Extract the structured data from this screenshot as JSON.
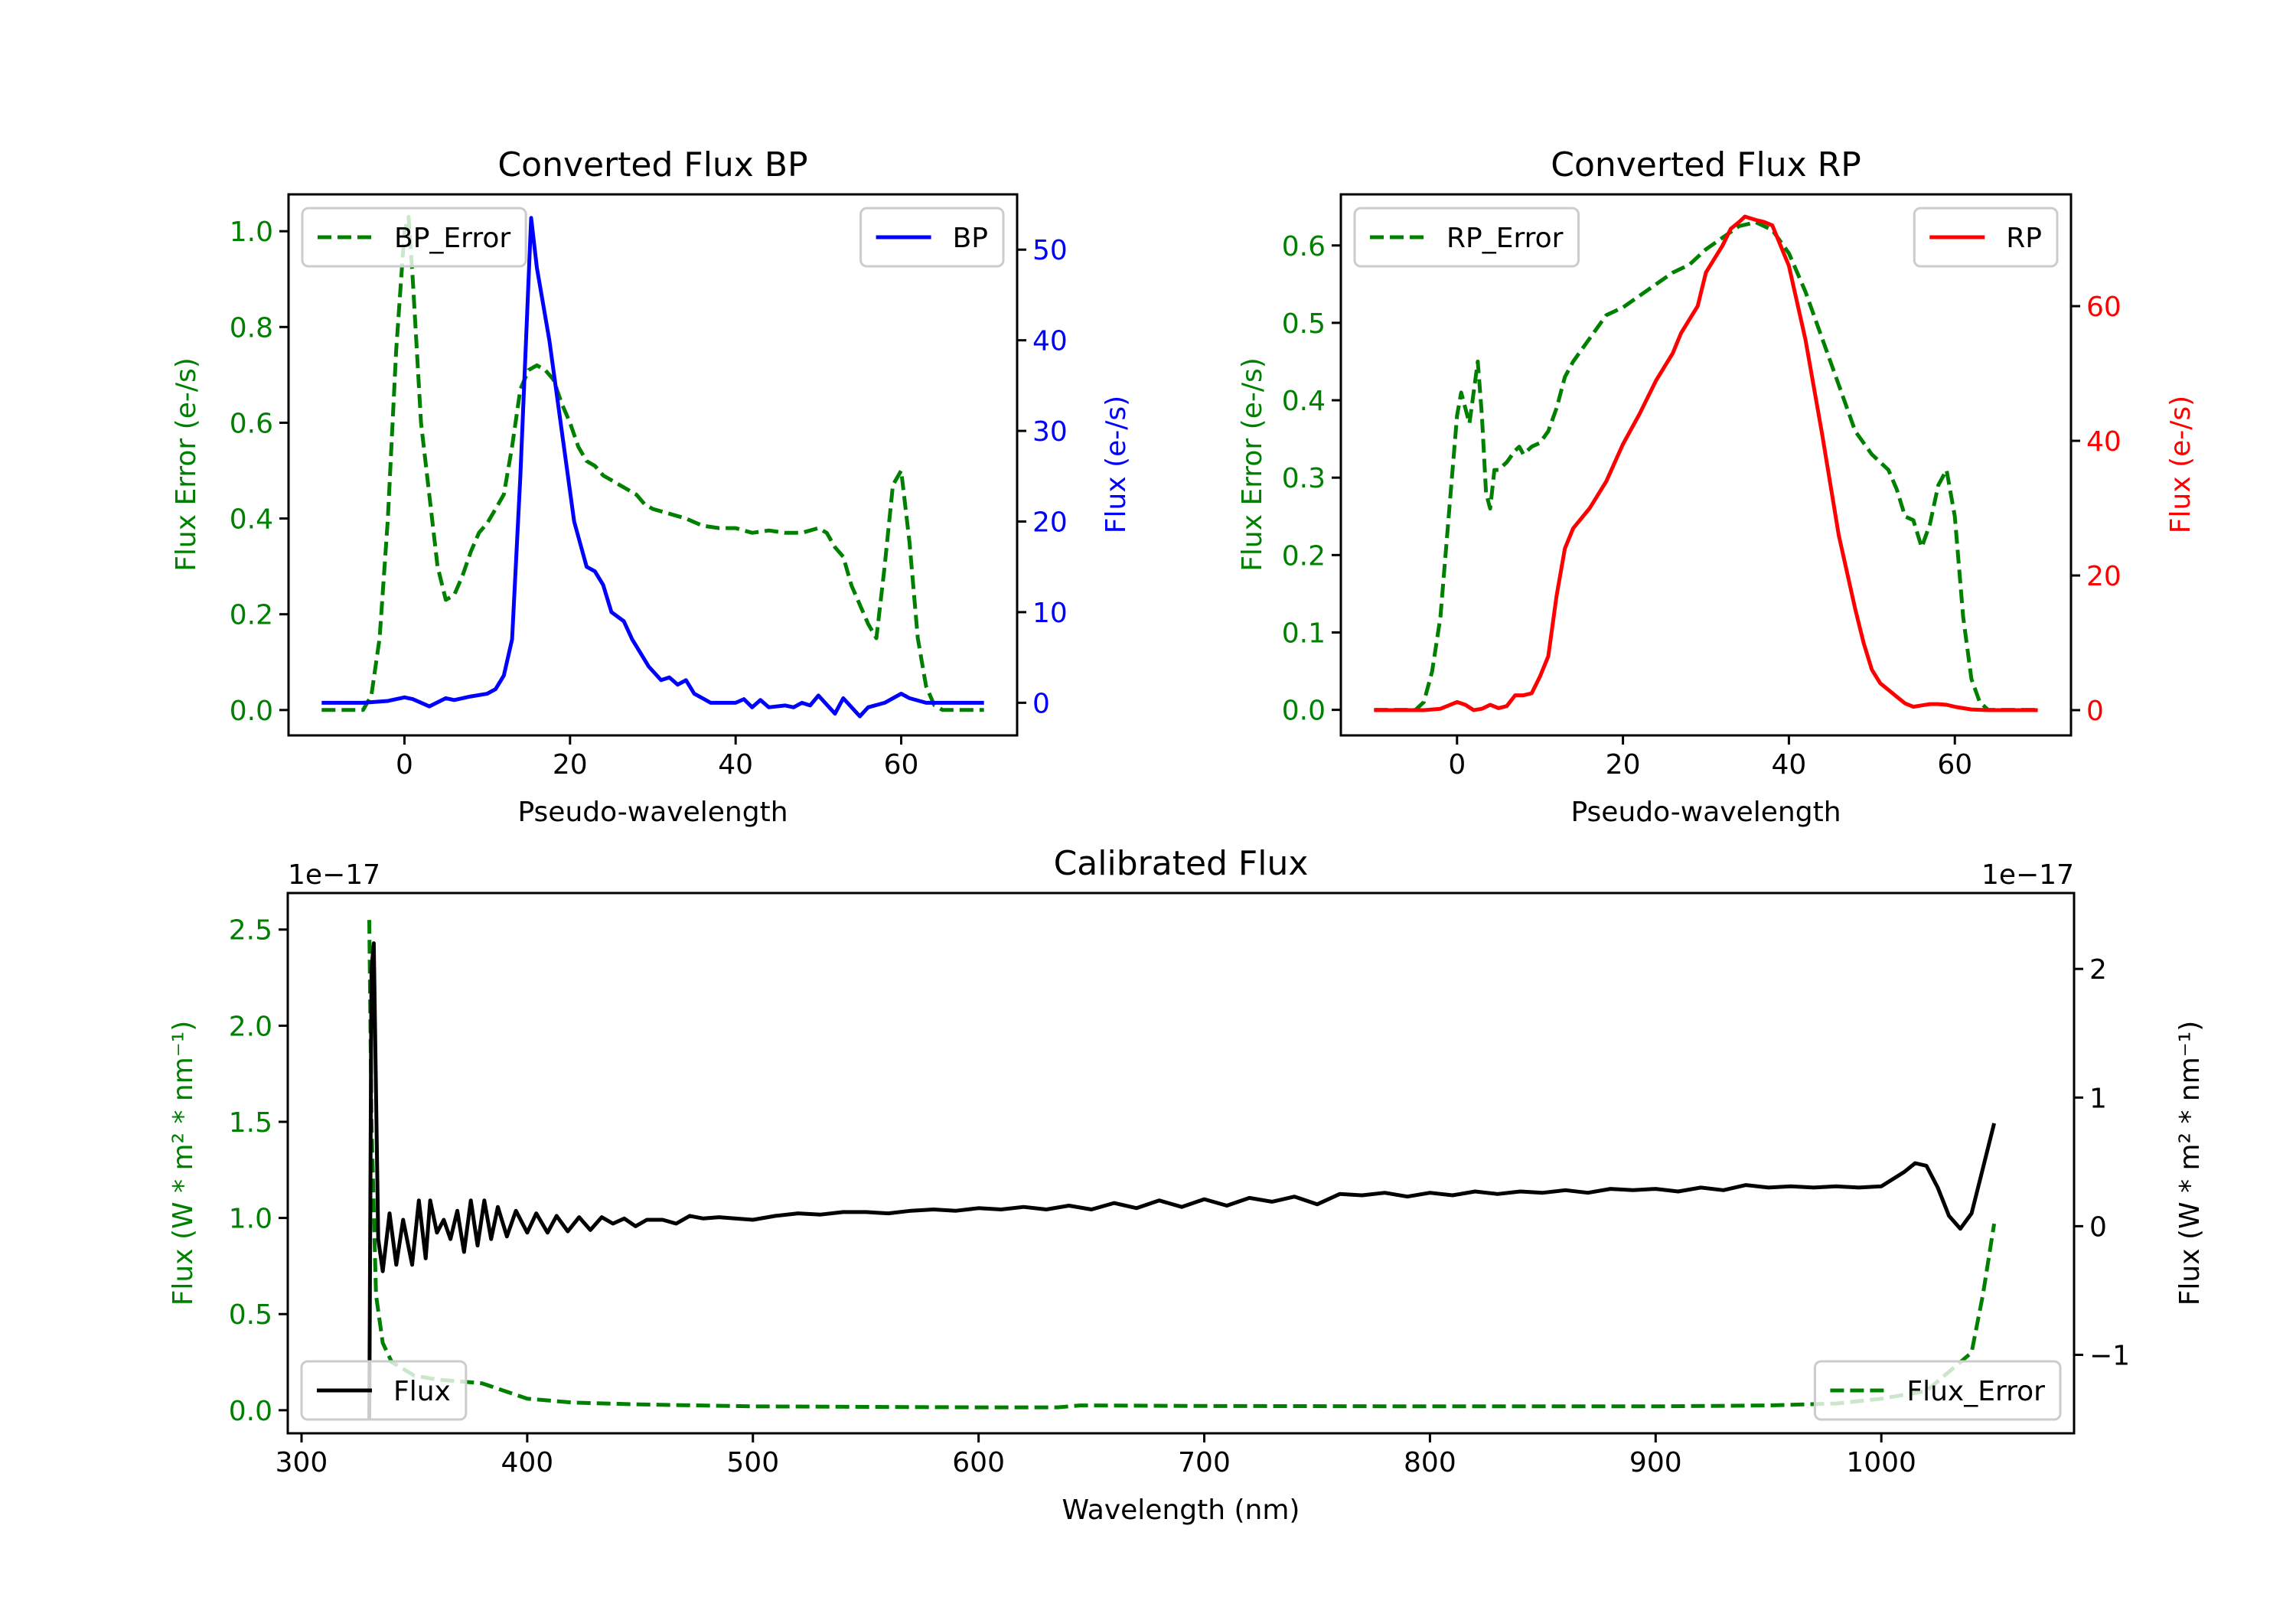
{
  "colors": {
    "green": "#008000",
    "blue": "#0000ff",
    "red": "#ff0000",
    "black": "#000000"
  },
  "chart_data": [
    {
      "type": "line",
      "title": "Converted Flux BP",
      "xlabel": "Pseudo-wavelength",
      "ylabel_left": "Flux Error (e-/s)",
      "ylabel_right": "Flux (e-/s)",
      "left_color": "#008000",
      "right_color": "#0000ff",
      "xlim": [
        -14,
        74
      ],
      "ylim_left": [
        -0.053,
        1.077
      ],
      "ylim_right": [
        -3.6,
        56.1
      ],
      "xticks": [
        0,
        20,
        40,
        60
      ],
      "xtick_labels": [
        "0",
        "20",
        "40",
        "60"
      ],
      "yticks_left": [
        0.0,
        0.2,
        0.4,
        0.6,
        0.8,
        1.0
      ],
      "ytick_labels_left": [
        "0.0",
        "0.2",
        "0.4",
        "0.6",
        "0.8",
        "1.0"
      ],
      "yticks_right": [
        0,
        10,
        20,
        30,
        40,
        50
      ],
      "ytick_labels_right": [
        "0",
        "10",
        "20",
        "30",
        "40",
        "50"
      ],
      "offset_left": "",
      "offset_right": "",
      "series": [
        {
          "name": "BP_Error",
          "axis": "left",
          "color": "#008000",
          "style": "dashed",
          "legend": "upper left",
          "x": [
            -10,
            -5,
            -4,
            -3,
            -2,
            -1,
            0,
            0.5,
            1,
            2,
            3,
            4,
            5,
            6,
            7,
            8,
            9,
            10,
            11,
            12,
            13,
            14,
            15,
            16,
            17,
            18,
            19,
            20,
            21,
            22,
            23,
            24,
            25,
            26,
            27,
            28,
            29,
            30,
            32,
            34,
            36,
            38,
            40,
            42,
            44,
            46,
            48,
            50,
            51,
            52,
            53,
            54,
            55,
            56,
            57,
            58,
            59,
            60,
            61,
            62,
            63,
            64,
            65,
            70
          ],
          "y": [
            0,
            0,
            0.03,
            0.15,
            0.4,
            0.75,
            1.0,
            1.03,
            0.9,
            0.6,
            0.45,
            0.3,
            0.23,
            0.24,
            0.28,
            0.33,
            0.37,
            0.39,
            0.42,
            0.45,
            0.55,
            0.67,
            0.71,
            0.72,
            0.71,
            0.69,
            0.64,
            0.6,
            0.55,
            0.52,
            0.51,
            0.49,
            0.48,
            0.47,
            0.46,
            0.45,
            0.43,
            0.42,
            0.41,
            0.4,
            0.385,
            0.38,
            0.38,
            0.37,
            0.375,
            0.37,
            0.37,
            0.38,
            0.37,
            0.34,
            0.32,
            0.26,
            0.22,
            0.18,
            0.15,
            0.3,
            0.47,
            0.5,
            0.35,
            0.15,
            0.05,
            0.01,
            0,
            0
          ]
        },
        {
          "name": "BP",
          "axis": "right",
          "color": "#0000ff",
          "style": "solid",
          "legend": "upper right",
          "x": [
            -10,
            -5,
            -2,
            0,
            1,
            3,
            5,
            6,
            8,
            10,
            11,
            12,
            13,
            14,
            15.3,
            16,
            17.5,
            19,
            20.5,
            22,
            23,
            24,
            25,
            26.5,
            27.5,
            28.5,
            29.5,
            31,
            32,
            33,
            34,
            35,
            36,
            37,
            40,
            41,
            42,
            43,
            44,
            46,
            47,
            48,
            49,
            50,
            52,
            53,
            55,
            56,
            58,
            60,
            61,
            63,
            70
          ],
          "y": [
            0,
            0,
            0.2,
            0.6,
            0.4,
            -0.4,
            0.5,
            0.3,
            0.7,
            1,
            1.5,
            3,
            7,
            25,
            53.5,
            48,
            40,
            30,
            20,
            15,
            14.5,
            13,
            10,
            9,
            7,
            5.5,
            4,
            2.5,
            2.8,
            2,
            2.5,
            1,
            0.5,
            0,
            0,
            0.4,
            -0.5,
            0.3,
            -0.5,
            -0.3,
            -0.5,
            0,
            -0.3,
            0.8,
            -1.2,
            0.5,
            -1.5,
            -0.5,
            0,
            1,
            0.5,
            0,
            0
          ]
        }
      ]
    },
    {
      "type": "line",
      "title": "Converted Flux RP",
      "xlabel": "Pseudo-wavelength",
      "ylabel_left": "Flux Error (e-/s)",
      "ylabel_right": "Flux (e-/s)",
      "left_color": "#008000",
      "right_color": "#ff0000",
      "xlim": [
        -14,
        74
      ],
      "ylim_left": [
        -0.033,
        0.666
      ],
      "ylim_right": [
        -3.75,
        76.6
      ],
      "xticks": [
        0,
        20,
        40,
        60
      ],
      "xtick_labels": [
        "0",
        "20",
        "40",
        "60"
      ],
      "yticks_left": [
        0.0,
        0.1,
        0.2,
        0.3,
        0.4,
        0.5,
        0.6
      ],
      "ytick_labels_left": [
        "0.0",
        "0.1",
        "0.2",
        "0.3",
        "0.4",
        "0.5",
        "0.6"
      ],
      "yticks_right": [
        0,
        20,
        40,
        60
      ],
      "ytick_labels_right": [
        "0",
        "20",
        "40",
        "60"
      ],
      "offset_left": "",
      "offset_right": "",
      "series": [
        {
          "name": "RP_Error",
          "axis": "left",
          "color": "#008000",
          "style": "dashed",
          "legend": "upper left",
          "x": [
            -10,
            -5,
            -4,
            -3,
            -2,
            -1,
            0,
            0.5,
            1,
            1.5,
            2.5,
            3,
            3.5,
            4,
            4.5,
            5,
            6,
            7,
            7.5,
            8,
            9,
            10,
            11,
            12,
            13,
            14,
            16,
            18,
            20,
            22,
            24,
            26,
            28,
            30,
            32,
            34,
            36,
            37,
            38,
            40,
            42,
            44,
            46,
            48,
            50,
            52,
            53,
            54,
            55,
            56,
            57,
            58,
            59,
            60,
            61,
            62,
            63,
            64,
            70
          ],
          "y": [
            0,
            0,
            0.01,
            0.05,
            0.12,
            0.25,
            0.38,
            0.41,
            0.39,
            0.37,
            0.45,
            0.38,
            0.28,
            0.26,
            0.31,
            0.31,
            0.32,
            0.335,
            0.34,
            0.33,
            0.34,
            0.345,
            0.36,
            0.39,
            0.43,
            0.45,
            0.48,
            0.51,
            0.52,
            0.535,
            0.55,
            0.565,
            0.575,
            0.595,
            0.61,
            0.625,
            0.63,
            0.625,
            0.62,
            0.59,
            0.54,
            0.48,
            0.42,
            0.36,
            0.33,
            0.31,
            0.285,
            0.25,
            0.245,
            0.21,
            0.24,
            0.29,
            0.31,
            0.25,
            0.12,
            0.04,
            0.01,
            0,
            0
          ]
        },
        {
          "name": "RP",
          "axis": "right",
          "color": "#ff0000",
          "style": "solid",
          "legend": "upper right",
          "x": [
            -10,
            -4,
            -2,
            0,
            1,
            2,
            3,
            4,
            5,
            6,
            7,
            8,
            9,
            10,
            11,
            12,
            13,
            14,
            16,
            18,
            20,
            22,
            24,
            26,
            27,
            28,
            29,
            30,
            31,
            32,
            33,
            34,
            34.7,
            36,
            37,
            38,
            40,
            42,
            44,
            46,
            48,
            49,
            50,
            51,
            52,
            53,
            54,
            55,
            56,
            57,
            58,
            59,
            60,
            62,
            64,
            70
          ],
          "y": [
            0,
            0,
            0.2,
            1.2,
            0.8,
            0,
            0.2,
            0.8,
            0.3,
            0.6,
            2.2,
            2.2,
            2.5,
            5,
            8,
            17,
            24,
            27,
            30,
            34,
            39.5,
            44,
            49,
            53,
            56,
            58,
            60,
            65,
            67,
            69,
            71.5,
            72.5,
            73.3,
            72.8,
            72.5,
            72,
            66,
            55,
            41,
            26,
            15,
            10,
            6,
            4,
            3,
            2,
            1,
            0.5,
            0.7,
            0.9,
            0.9,
            0.8,
            0.5,
            0.1,
            0,
            0
          ]
        }
      ]
    },
    {
      "type": "line",
      "title": "Calibrated Flux",
      "xlabel": "Wavelength (nm)",
      "ylabel_left": "Flux (W * m² * nm⁻¹)",
      "ylabel_right": "Flux (W * m² * nm⁻¹)",
      "left_color": "#008000",
      "right_color": "#000000",
      "xlim": [
        293.9,
        1085.4
      ],
      "ylim_left": [
        -0.12,
        2.69
      ],
      "ylim_right": [
        -1.61,
        2.59
      ],
      "xticks": [
        300,
        400,
        500,
        600,
        700,
        800,
        900,
        1000
      ],
      "xtick_labels": [
        "300",
        "400",
        "500",
        "600",
        "700",
        "800",
        "900",
        "1000"
      ],
      "yticks_left": [
        0.0,
        0.5,
        1.0,
        1.5,
        2.0,
        2.5
      ],
      "ytick_labels_left": [
        "0.0",
        "0.5",
        "1.0",
        "1.5",
        "2.0",
        "2.5"
      ],
      "yticks_right": [
        -1,
        0,
        1,
        2
      ],
      "ytick_labels_right": [
        "−1",
        "0",
        "1",
        "2"
      ],
      "offset_left": "1e−17",
      "offset_right": "1e−17",
      "series": [
        {
          "name": "Flux_Error",
          "axis": "left",
          "color": "#008000",
          "style": "dashed",
          "legend": "lower right",
          "x": [
            330,
            331,
            333,
            336,
            340,
            350,
            360,
            370,
            380,
            390,
            400,
            420,
            450,
            500,
            600,
            635,
            645,
            700,
            800,
            900,
            950,
            980,
            1000,
            1020,
            1030,
            1040,
            1045,
            1050
          ],
          "y": [
            2.55,
            1.5,
            0.6,
            0.35,
            0.25,
            0.18,
            0.16,
            0.15,
            0.14,
            0.1,
            0.06,
            0.04,
            0.03,
            0.02,
            0.015,
            0.015,
            0.025,
            0.022,
            0.02,
            0.02,
            0.025,
            0.035,
            0.06,
            0.1,
            0.2,
            0.3,
            0.6,
            0.97
          ]
        },
        {
          "name": "Flux",
          "axis": "right",
          "color": "#000000",
          "style": "solid",
          "legend": "lower left",
          "x": [
            330,
            331,
            332,
            334,
            336,
            339,
            342,
            345,
            349,
            352,
            355,
            357,
            360,
            363,
            366,
            369,
            372,
            375,
            378,
            381,
            384,
            387,
            391,
            395,
            400,
            404,
            409,
            413,
            418,
            423,
            428,
            433,
            438,
            443,
            448,
            453,
            460,
            466,
            472,
            478,
            485,
            492,
            500,
            510,
            520,
            530,
            540,
            550,
            560,
            570,
            580,
            590,
            600,
            610,
            620,
            630,
            640,
            650,
            660,
            670,
            680,
            690,
            700,
            710,
            720,
            730,
            740,
            750,
            760,
            770,
            780,
            790,
            800,
            810,
            820,
            830,
            840,
            850,
            860,
            870,
            880,
            890,
            900,
            910,
            920,
            930,
            940,
            950,
            960,
            970,
            980,
            990,
            1000,
            1010,
            1015,
            1020,
            1025,
            1030,
            1035,
            1040,
            1045,
            1050
          ],
          "y": [
            -1.5,
            2.0,
            2.2,
            -0.1,
            -0.35,
            0.1,
            -0.3,
            0.05,
            -0.3,
            0.2,
            -0.25,
            0.2,
            -0.05,
            0.05,
            -0.1,
            0.12,
            -0.2,
            0.2,
            -0.15,
            0.2,
            -0.1,
            0.15,
            -0.08,
            0.12,
            -0.05,
            0.1,
            -0.05,
            0.08,
            -0.04,
            0.07,
            -0.03,
            0.07,
            0.02,
            0.06,
            0.0,
            0.05,
            0.05,
            0.02,
            0.08,
            0.06,
            0.07,
            0.06,
            0.05,
            0.08,
            0.1,
            0.09,
            0.11,
            0.11,
            0.1,
            0.12,
            0.13,
            0.12,
            0.14,
            0.13,
            0.15,
            0.13,
            0.16,
            0.13,
            0.18,
            0.14,
            0.2,
            0.15,
            0.21,
            0.16,
            0.22,
            0.19,
            0.23,
            0.17,
            0.25,
            0.24,
            0.26,
            0.23,
            0.26,
            0.24,
            0.27,
            0.25,
            0.27,
            0.26,
            0.28,
            0.26,
            0.29,
            0.28,
            0.29,
            0.27,
            0.3,
            0.28,
            0.32,
            0.3,
            0.31,
            0.3,
            0.31,
            0.3,
            0.31,
            0.42,
            0.49,
            0.47,
            0.3,
            0.08,
            -0.02,
            0.1,
            0.45,
            0.8
          ]
        }
      ]
    }
  ]
}
